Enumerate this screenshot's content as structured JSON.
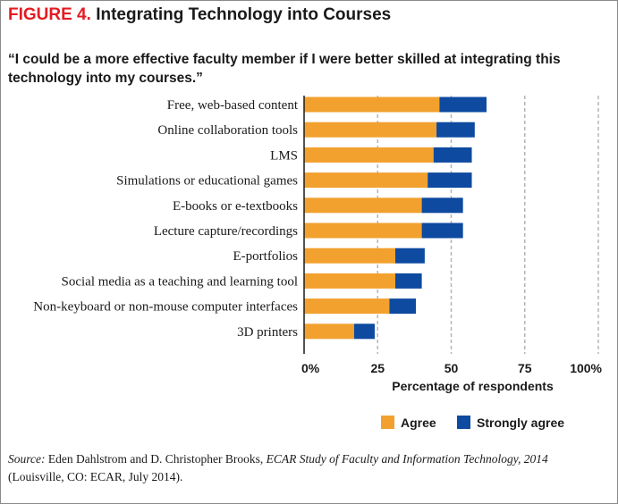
{
  "figure": {
    "number": "FIGURE 4.",
    "title": "Integrating Technology into Courses",
    "quote": "“I could be a more effective faculty member if I were better skilled at integrating this technology into my courses.”"
  },
  "colors": {
    "agree": "#f2a12e",
    "strongly_agree": "#0d4aa0",
    "figure_number": "#e31b23",
    "grid": "#b5b5b5"
  },
  "chart_data": {
    "type": "bar",
    "orientation": "horizontal",
    "stacked": true,
    "categories": [
      "Free, web-based content",
      "Online collaboration tools",
      "LMS",
      "Simulations or educational games",
      "E-books or e-textbooks",
      "Lecture capture/recordings",
      "E-portfolios",
      "Social media as a teaching and learning tool",
      "Non-keyboard or non-mouse computer interfaces",
      "3D printers"
    ],
    "series": [
      {
        "name": "Agree",
        "values": [
          46,
          45,
          44,
          42,
          40,
          40,
          31,
          31,
          29,
          17
        ]
      },
      {
        "name": "Strongly agree",
        "values": [
          16,
          13,
          13,
          15,
          14,
          14,
          10,
          9,
          9,
          7
        ]
      }
    ],
    "xlabel": "Percentage of respondents",
    "ylabel": "",
    "xlim": [
      0,
      100
    ],
    "ticks": [
      {
        "value": 0,
        "label": "0%"
      },
      {
        "value": 25,
        "label": "25"
      },
      {
        "value": 50,
        "label": "50"
      },
      {
        "value": 75,
        "label": "75"
      },
      {
        "value": 100,
        "label": "100%"
      }
    ],
    "grid": "dashed vertical",
    "legend": "bottom"
  },
  "source": {
    "label": "Source:",
    "authors": " Eden Dahlstrom and D. Christopher Brooks, ",
    "publication": "ECAR Study of Faculty and Information Technology, 2014",
    "details": "(Louisville, CO: ECAR, July 2014)."
  }
}
